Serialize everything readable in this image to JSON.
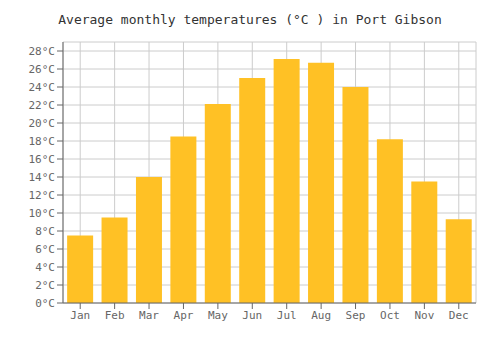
{
  "chart_data": {
    "type": "bar",
    "title": "Average monthly temperatures (°C ) in Port Gibson",
    "categories": [
      "Jan",
      "Feb",
      "Mar",
      "Apr",
      "May",
      "Jun",
      "Jul",
      "Aug",
      "Sep",
      "Oct",
      "Nov",
      "Dec"
    ],
    "values": [
      7.5,
      9.5,
      14.0,
      18.5,
      22.1,
      25.0,
      27.1,
      26.7,
      24.0,
      18.2,
      13.5,
      9.3
    ],
    "color": "#FFC125",
    "ylim": [
      0,
      29
    ],
    "yticks": [
      {
        "value": 0,
        "label": "0°C"
      },
      {
        "value": 2,
        "label": "2°C"
      },
      {
        "value": 4,
        "label": "4°C"
      },
      {
        "value": 6,
        "label": "6°C"
      },
      {
        "value": 8,
        "label": "8°C"
      },
      {
        "value": 10,
        "label": "10°C"
      },
      {
        "value": 12,
        "label": "12°C"
      },
      {
        "value": 14,
        "label": "14°C"
      },
      {
        "value": 16,
        "label": "16°C"
      },
      {
        "value": 18,
        "label": "18°C"
      },
      {
        "value": 20,
        "label": "20°C"
      },
      {
        "value": 22,
        "label": "22°C"
      },
      {
        "value": 24,
        "label": "24°C"
      },
      {
        "value": 26,
        "label": "26°C"
      },
      {
        "value": 28,
        "label": "28°C"
      }
    ],
    "grid": true
  }
}
